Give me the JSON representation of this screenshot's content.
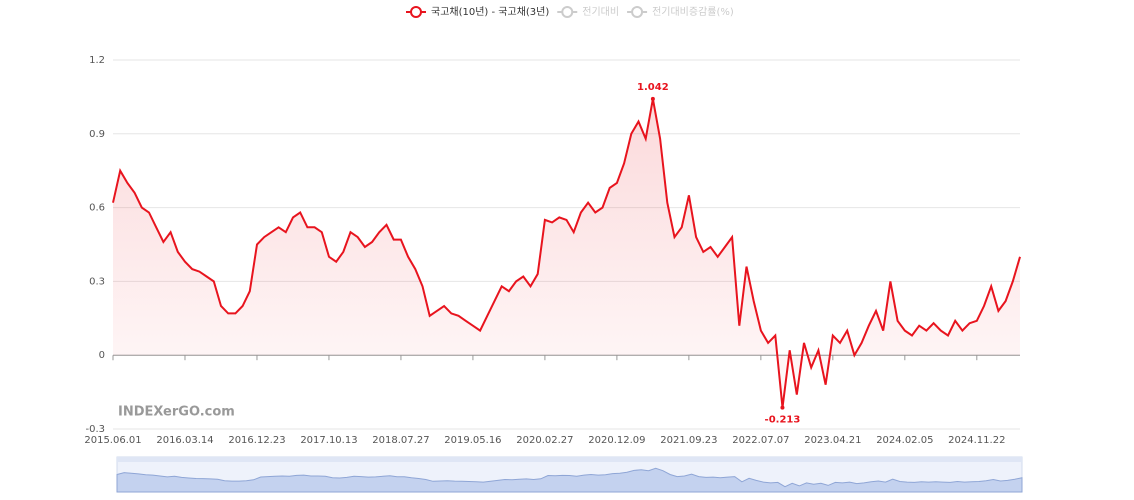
{
  "chart_data": {
    "type": "line",
    "series": [
      {
        "name": "국고채(10년) - 국고채(3년)",
        "color": "#e8141e",
        "values": [
          0.62,
          0.75,
          0.7,
          0.66,
          0.6,
          0.58,
          0.52,
          0.46,
          0.5,
          0.42,
          0.38,
          0.35,
          0.34,
          0.32,
          0.3,
          0.2,
          0.17,
          0.17,
          0.2,
          0.26,
          0.45,
          0.48,
          0.5,
          0.52,
          0.5,
          0.56,
          0.58,
          0.52,
          0.52,
          0.5,
          0.4,
          0.38,
          0.42,
          0.5,
          0.48,
          0.44,
          0.46,
          0.5,
          0.53,
          0.47,
          0.47,
          0.4,
          0.35,
          0.28,
          0.16,
          0.18,
          0.2,
          0.17,
          0.16,
          0.14,
          0.12,
          0.1,
          0.16,
          0.22,
          0.28,
          0.26,
          0.3,
          0.32,
          0.28,
          0.33,
          0.55,
          0.54,
          0.56,
          0.55,
          0.5,
          0.58,
          0.62,
          0.58,
          0.6,
          0.68,
          0.7,
          0.78,
          0.9,
          0.95,
          0.88,
          1.042,
          0.88,
          0.62,
          0.48,
          0.52,
          0.65,
          0.48,
          0.42,
          0.44,
          0.4,
          0.44,
          0.48,
          0.12,
          0.36,
          0.22,
          0.1,
          0.05,
          0.08,
          -0.213,
          0.02,
          -0.16,
          0.05,
          -0.05,
          0.02,
          -0.12,
          0.08,
          0.05,
          0.1,
          0.0,
          0.05,
          0.12,
          0.18,
          0.1,
          0.3,
          0.14,
          0.1,
          0.08,
          0.12,
          0.1,
          0.13,
          0.1,
          0.08,
          0.14,
          0.1,
          0.13,
          0.14,
          0.2,
          0.28,
          0.18,
          0.22,
          0.3,
          0.4
        ]
      }
    ],
    "legend_inactive": [
      "전기대비",
      "전기대비증감률(%)"
    ],
    "categories": [
      "2015.06.01",
      null,
      null,
      null,
      null,
      null,
      null,
      null,
      null,
      null,
      "2016.03.14",
      null,
      null,
      null,
      null,
      null,
      null,
      null,
      null,
      null,
      "2016.12.23",
      null,
      null,
      null,
      null,
      null,
      null,
      null,
      null,
      null,
      "2017.10.13",
      null,
      null,
      null,
      null,
      null,
      null,
      null,
      null,
      null,
      "2018.07.27",
      null,
      null,
      null,
      null,
      null,
      null,
      null,
      null,
      null,
      "2019.05.16",
      null,
      null,
      null,
      null,
      null,
      null,
      null,
      null,
      null,
      "2020.02.27",
      null,
      null,
      null,
      null,
      null,
      null,
      null,
      null,
      null,
      "2020.12.09",
      null,
      null,
      null,
      null,
      null,
      null,
      null,
      null,
      null,
      "2021.09.23",
      null,
      null,
      null,
      null,
      null,
      null,
      null,
      null,
      null,
      "2022.07.07",
      null,
      null,
      null,
      null,
      null,
      null,
      null,
      null,
      null,
      "2023.04.21",
      null,
      null,
      null,
      null,
      null,
      null,
      null,
      null,
      null,
      "2024.02.05",
      null,
      null,
      null,
      null,
      null,
      null,
      null,
      null,
      null,
      "2024.11.22",
      null,
      null,
      null,
      null,
      null,
      null
    ],
    "value_label_indices": [
      75,
      93
    ],
    "ylim": [
      -0.3,
      1.2
    ],
    "yticks": [
      1.2,
      0.9,
      0.6,
      0.3,
      0,
      -0.3
    ],
    "grid": true,
    "watermark": "INDEXerGO.com"
  }
}
